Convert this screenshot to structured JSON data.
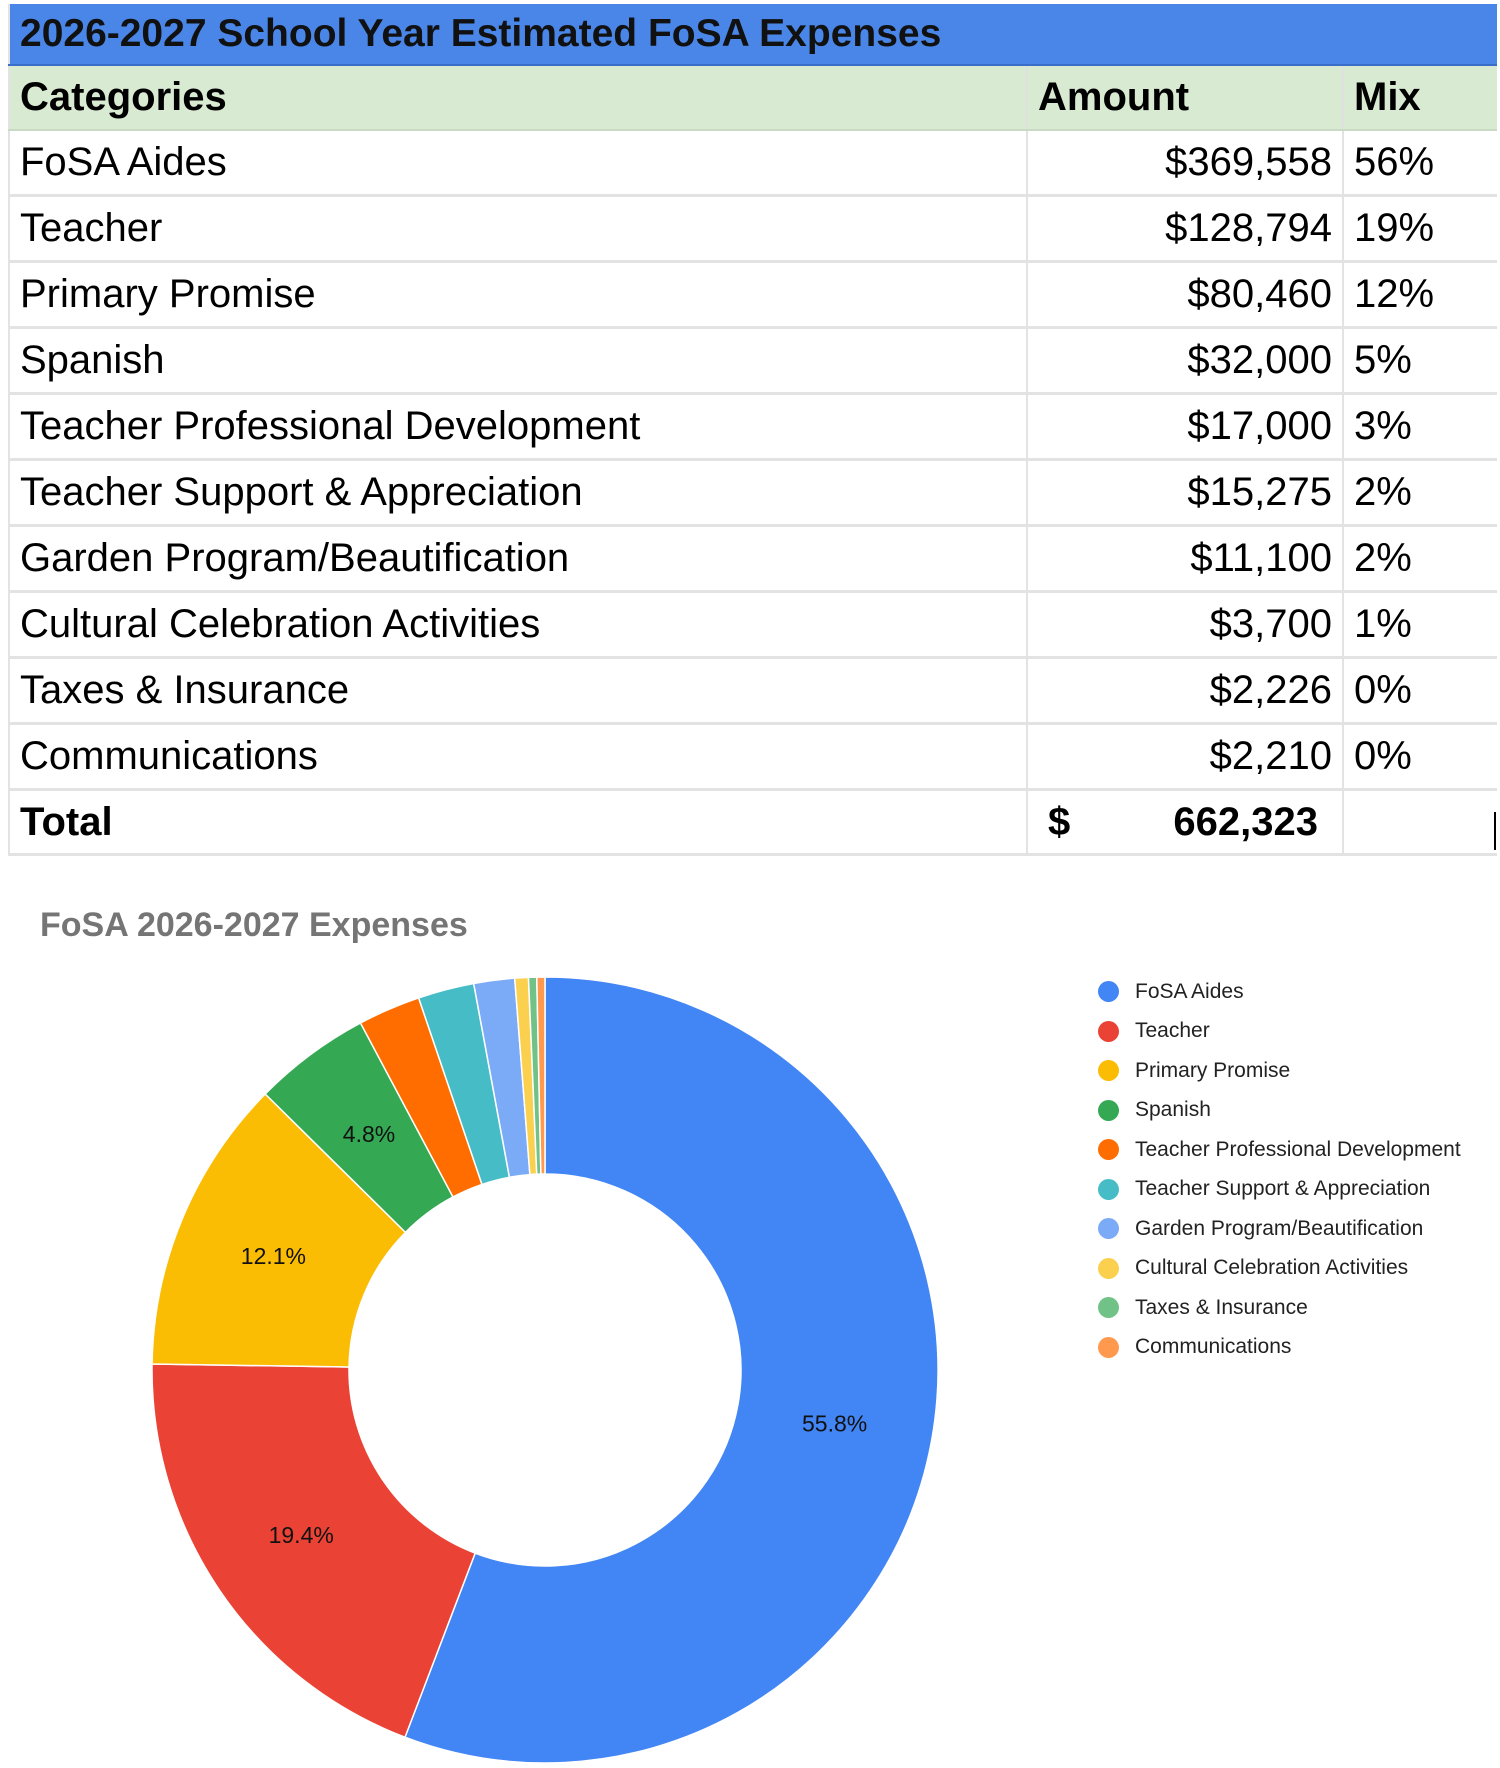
{
  "table": {
    "title": "2026-2027 School Year Estimated FoSA Expenses",
    "headers": {
      "category": "Categories",
      "amount": "Amount",
      "mix": "Mix"
    },
    "rows": [
      {
        "category": "FoSA Aides",
        "amount": "$369,558",
        "mix": "56%"
      },
      {
        "category": "Teacher",
        "amount": "$128,794",
        "mix": "19%"
      },
      {
        "category": "Primary Promise",
        "amount": "$80,460",
        "mix": "12%"
      },
      {
        "category": "Spanish",
        "amount": "$32,000",
        "mix": "5%"
      },
      {
        "category": "Teacher Professional Development",
        "amount": "$17,000",
        "mix": "3%"
      },
      {
        "category": "Teacher Support & Appreciation",
        "amount": "$15,275",
        "mix": "2%"
      },
      {
        "category": "Garden Program/Beautification",
        "amount": "$11,100",
        "mix": "2%"
      },
      {
        "category": "Cultural Celebration Activities",
        "amount": "$3,700",
        "mix": "1%"
      },
      {
        "category": "Taxes & Insurance",
        "amount": "$2,226",
        "mix": "0%"
      },
      {
        "category": "Communications",
        "amount": "$2,210",
        "mix": "0%"
      }
    ],
    "total": {
      "label": "Total",
      "currency": "$",
      "amount": "662,323",
      "mix": ""
    }
  },
  "chart_data": {
    "type": "pie",
    "title": "FoSA 2026-2027 Expenses",
    "donut": true,
    "legend_position": "right",
    "categories": [
      "FoSA Aides",
      "Teacher",
      "Primary Promise",
      "Spanish",
      "Teacher Professional Development",
      "Teacher Support & Appreciation",
      "Garden Program/Beautification",
      "Cultural Celebration Activities",
      "Taxes & Insurance",
      "Communications"
    ],
    "values": [
      369558,
      128794,
      80460,
      32000,
      17000,
      15275,
      11100,
      3700,
      2226,
      2210
    ],
    "colors": [
      "#4285f4",
      "#ea4335",
      "#fbbc04",
      "#34a853",
      "#ff6d01",
      "#46bdc6",
      "#7baaf7",
      "#fcd04f",
      "#71c287",
      "#ff994d"
    ],
    "data_labels": [
      "55.8%",
      "19.4%",
      "12.1%",
      "4.8%",
      "",
      "",
      "",
      "",
      "",
      ""
    ]
  }
}
